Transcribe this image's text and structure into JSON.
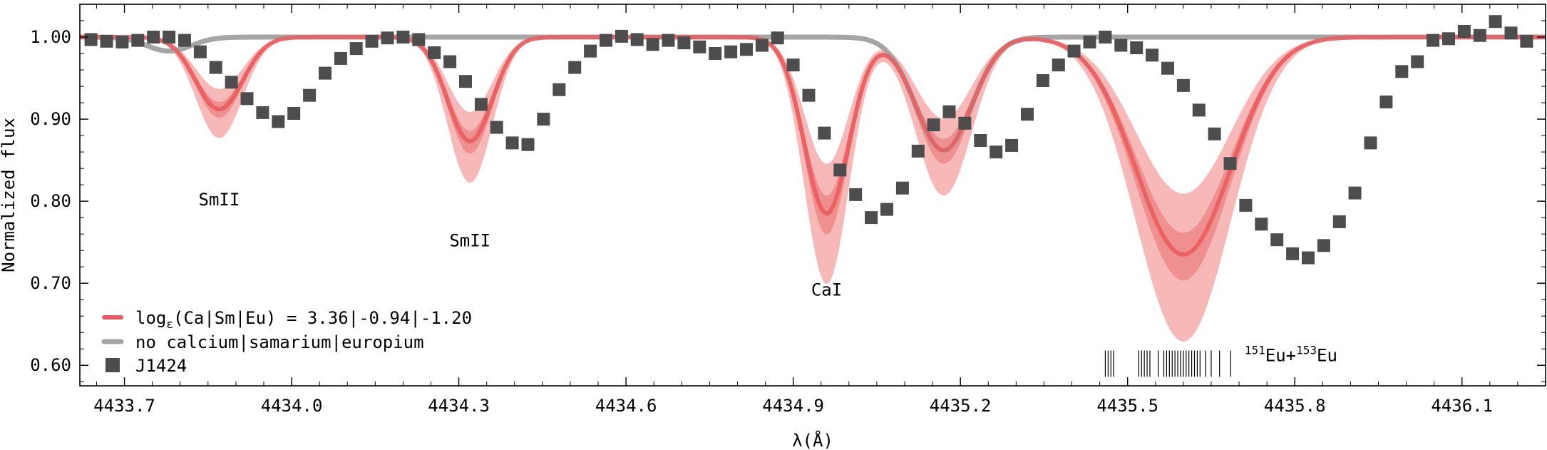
{
  "chart_data": {
    "type": "line",
    "xlabel": "λ(Å)",
    "ylabel": "Normalized flux",
    "xlim": [
      4433.62,
      4436.25
    ],
    "ylim": [
      0.575,
      1.04
    ],
    "xticks": [
      4433.7,
      4434.0,
      4434.3,
      4434.6,
      4434.9,
      4435.2,
      4435.5,
      4435.8,
      4436.1
    ],
    "xtick_labels": [
      "4433.7",
      "4434.0",
      "4434.3",
      "4434.6",
      "4434.9",
      "4435.2",
      "4435.5",
      "4435.8",
      "4436.1"
    ],
    "yticks": [
      0.6,
      0.7,
      0.8,
      0.9,
      1.0
    ],
    "ytick_labels": [
      "0.60",
      "0.70",
      "0.80",
      "0.90",
      "1.00"
    ],
    "grid": false,
    "legend_position": "bottom-left",
    "colors": {
      "model": "#ea5a5e",
      "band_inner": "#f08f8f",
      "band_outer": "#f7b8b8",
      "no_element": "#a5a5a5",
      "data": "#4d4d4d"
    },
    "legend": {
      "model_prefix": "log",
      "model_sub": "ε",
      "model_suffix": "(Ca|Sm|Eu) = 3.36|-0.94|-1.20",
      "no_element": "no calcium|samarium|europium",
      "data": "J1424"
    },
    "line_profiles": [
      {
        "label": "SmII",
        "center": 4433.87,
        "depth": 0.088,
        "sigma": 0.042
      },
      {
        "label": "SmII",
        "center": 4434.32,
        "depth": 0.127,
        "sigma": 0.04
      },
      {
        "label": "CaI",
        "center": 4434.96,
        "depth": 0.215,
        "sigma": 0.04
      },
      {
        "label": "",
        "center": 4435.17,
        "depth": 0.138,
        "sigma": 0.05
      },
      {
        "label": "Eu",
        "center": 4435.6,
        "depth": 0.265,
        "sigma": 0.085
      }
    ],
    "no_element_profiles": [
      {
        "center": 4433.78,
        "depth": 0.017,
        "sigma": 0.04
      },
      {
        "center": 4435.17,
        "depth": 0.138,
        "sigma": 0.05
      }
    ],
    "band_scale": [
      0.72,
      0.9,
      1.12,
      1.4
    ],
    "annotations": [
      {
        "text": "SmII",
        "x": 4433.87,
        "y": 0.795
      },
      {
        "text": "SmII",
        "x": 4434.32,
        "y": 0.745
      },
      {
        "text": "CaI",
        "x": 4434.96,
        "y": 0.685
      }
    ],
    "eu_label": {
      "iso1": "151",
      "el1": "Eu+",
      "iso2": "153",
      "el2": "Eu",
      "x": 4435.71,
      "y": 0.605
    },
    "eu_lines": {
      "y_low": 0.586,
      "y_high": 0.618,
      "x": [
        4435.46,
        4435.465,
        4435.47,
        4435.475,
        4435.52,
        4435.525,
        4435.53,
        4435.535,
        4435.54,
        4435.555,
        4435.565,
        4435.57,
        4435.575,
        4435.58,
        4435.585,
        4435.59,
        4435.595,
        4435.6,
        4435.605,
        4435.61,
        4435.615,
        4435.62,
        4435.625,
        4435.63,
        4435.64,
        4435.65,
        4435.665,
        4435.685
      ]
    },
    "series": [
      {
        "name": "J1424",
        "x": [
          4433.64,
          4433.668,
          4433.696,
          4433.724,
          4433.752,
          4433.78,
          4433.808,
          4433.836,
          4433.864,
          4433.892,
          4433.92,
          4433.948,
          4433.976,
          4434.004,
          4434.032,
          4434.06,
          4434.088,
          4434.116,
          4434.144,
          4434.172,
          4434.2,
          4434.228,
          4434.256,
          4434.284,
          4434.312,
          4434.34,
          4434.368,
          4434.396,
          4434.424,
          4434.452,
          4434.48,
          4434.508,
          4434.536,
          4434.564,
          4434.592,
          4434.62,
          4434.648,
          4434.676,
          4434.704,
          4434.732,
          4434.76,
          4434.788,
          4434.816,
          4434.844,
          4434.872,
          4434.9,
          4434.928,
          4434.956,
          4434.984,
          4435.012,
          4435.04,
          4435.068,
          4435.096,
          4435.124,
          4435.152,
          4435.18,
          4435.208,
          4435.236,
          4435.264,
          4435.292,
          4435.32,
          4435.348,
          4435.376,
          4435.404,
          4435.432,
          4435.46,
          4435.488,
          4435.516,
          4435.544,
          4435.572,
          4435.6,
          4435.628,
          4435.656,
          4435.684,
          4435.712,
          4435.74,
          4435.768,
          4435.796,
          4435.824,
          4435.852,
          4435.88,
          4435.908,
          4435.936,
          4435.964,
          4435.992,
          4436.02,
          4436.048,
          4436.076,
          4436.104,
          4436.132,
          4436.16,
          4436.188,
          4436.216
        ],
        "y": [
          0.997,
          0.995,
          0.994,
          0.996,
          1.0,
          1.0,
          0.996,
          0.982,
          0.963,
          0.945,
          0.925,
          0.908,
          0.897,
          0.907,
          0.929,
          0.956,
          0.974,
          0.986,
          0.995,
          0.999,
          1.0,
          0.997,
          0.981,
          0.97,
          0.946,
          0.918,
          0.89,
          0.871,
          0.869,
          0.9,
          0.936,
          0.963,
          0.983,
          0.996,
          1.001,
          0.997,
          0.991,
          0.996,
          0.993,
          0.988,
          0.98,
          0.982,
          0.985,
          0.99,
          0.999,
          0.966,
          0.929,
          0.883,
          0.838,
          0.808,
          0.78,
          0.79,
          0.816,
          0.861,
          0.893,
          0.909,
          0.895,
          0.874,
          0.86,
          0.868,
          0.906,
          0.947,
          0.966,
          0.983,
          0.994,
          1.0,
          0.99,
          0.987,
          0.978,
          0.962,
          0.941,
          0.911,
          0.882,
          0.846,
          0.795,
          0.772,
          0.753,
          0.736,
          0.731,
          0.746,
          0.775,
          0.81,
          0.871,
          0.921,
          0.958,
          0.97,
          0.996,
          0.998,
          1.007,
          1.002,
          1.019,
          1.005,
          0.995
        ]
      }
    ]
  }
}
